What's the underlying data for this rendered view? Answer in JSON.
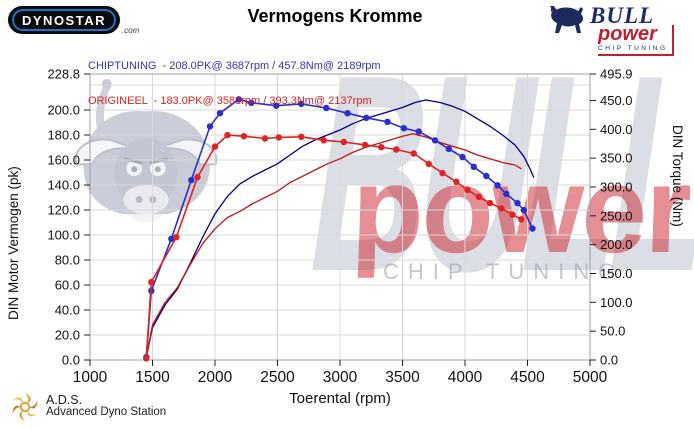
{
  "header": {
    "dynostar_logo_text": "DYNOSTAR",
    "dynostar_logo_suffix": ".com",
    "title": "Vermogens Kromme",
    "bullpower": {
      "brand": "BULL",
      "sub_brand": "power",
      "tagline": "CHIP TUNING"
    }
  },
  "legend": {
    "chiptuning_text": "CHIPTUNING  - 208.0PK@ 3687rpm / 457.8Nm@ 2189rpm",
    "origineel_text": "ORIGINEEL  - 183.0PK@ 3583rpm / 393.3Nm@ 2137rpm",
    "chiptuning_color": "#3333cc",
    "origineel_color": "#dd2222"
  },
  "peaks": {
    "chiptuning": {
      "power_pk": 208.0,
      "power_rpm": 3687,
      "torque_nm": 457.8,
      "torque_rpm": 2189
    },
    "origineel": {
      "power_pk": 183.0,
      "power_rpm": 3583,
      "torque_nm": 393.3,
      "torque_rpm": 2137
    }
  },
  "watermark": {
    "brand": "BULL",
    "sub_brand": "power",
    "tagline": "CHIP TUNING"
  },
  "footer": {
    "abbr": "A.D.S.",
    "name": "Advanced Dyno Station"
  },
  "chart_data": {
    "type": "line",
    "title": "Vermogens Kromme",
    "xlabel": "Toerental (rpm)",
    "ylabel_left": "DIN Motor Vermogen (pk)",
    "ylabel_right": "DIN Torque (Nm)",
    "x_range": [
      1000,
      5000
    ],
    "y_left_range": [
      0,
      228.8
    ],
    "y_right_range": [
      0,
      495.9
    ],
    "grid": true,
    "legend_position": "top-left",
    "x_tick_values": [
      1000,
      1500,
      2000,
      2500,
      3000,
      3500,
      4000,
      4500,
      5000
    ],
    "x_tick_labels": [
      "1000",
      "1500",
      "2000",
      "2500",
      "3000",
      "3500",
      "4000",
      "4500",
      "5000"
    ],
    "y_left_tick_values": [
      0,
      20,
      40,
      60,
      80,
      100,
      120,
      140,
      160,
      180,
      200,
      228.8
    ],
    "y_left_tick_labels": [
      "0.0",
      "20.0",
      "40.0",
      "60.0",
      "80.0",
      "100.0",
      "120.0",
      "140.0",
      "160.0",
      "180.0",
      "200.0",
      "228.8"
    ],
    "y_right_tick_values": [
      0,
      50,
      100,
      150,
      200,
      250,
      300,
      350,
      400,
      450,
      495.9
    ],
    "y_right_tick_labels": [
      "0.0",
      "50.0",
      "100.0",
      "150.0",
      "200.0",
      "250.0",
      "300.0",
      "350.0",
      "400.0",
      "450.0",
      "495.9"
    ],
    "x_gridline_values": [
      1500,
      2000,
      2500,
      3000,
      3500,
      4000,
      4500
    ],
    "y_gridline_left_values": [
      20,
      40,
      60,
      80,
      100,
      120,
      140,
      160,
      180,
      200,
      220
    ],
    "series": [
      {
        "name": "CHIPTUNING vermogen (pk)",
        "axis": "left",
        "color": "#00008b",
        "width": 1.3,
        "markers": false,
        "points": [
          [
            1450,
            2
          ],
          [
            1500,
            26
          ],
          [
            1600,
            44
          ],
          [
            1700,
            57
          ],
          [
            1800,
            77
          ],
          [
            1900,
            98
          ],
          [
            2000,
            117
          ],
          [
            2100,
            131
          ],
          [
            2200,
            141
          ],
          [
            2300,
            147
          ],
          [
            2400,
            152
          ],
          [
            2500,
            157
          ],
          [
            2600,
            164
          ],
          [
            2700,
            171
          ],
          [
            2800,
            176
          ],
          [
            2900,
            180
          ],
          [
            3000,
            184
          ],
          [
            3100,
            189
          ],
          [
            3200,
            193
          ],
          [
            3300,
            196
          ],
          [
            3400,
            199
          ],
          [
            3500,
            202
          ],
          [
            3600,
            206
          ],
          [
            3687,
            208
          ],
          [
            3800,
            206
          ],
          [
            3900,
            203
          ],
          [
            4000,
            199
          ],
          [
            4100,
            193
          ],
          [
            4200,
            187
          ],
          [
            4300,
            180
          ],
          [
            4400,
            172
          ],
          [
            4470,
            163
          ],
          [
            4520,
            153
          ],
          [
            4550,
            146
          ]
        ]
      },
      {
        "name": "ORIGINEEL vermogen (pk)",
        "axis": "left",
        "color": "#c41414",
        "width": 1.3,
        "markers": false,
        "points": [
          [
            1450,
            2
          ],
          [
            1500,
            28
          ],
          [
            1600,
            46
          ],
          [
            1700,
            58
          ],
          [
            1800,
            76
          ],
          [
            1900,
            93
          ],
          [
            2000,
            105
          ],
          [
            2100,
            114
          ],
          [
            2200,
            119
          ],
          [
            2300,
            125
          ],
          [
            2400,
            130
          ],
          [
            2500,
            135
          ],
          [
            2600,
            142
          ],
          [
            2700,
            147
          ],
          [
            2800,
            152
          ],
          [
            2900,
            157
          ],
          [
            3000,
            161
          ],
          [
            3100,
            166
          ],
          [
            3200,
            170
          ],
          [
            3300,
            173
          ],
          [
            3400,
            176
          ],
          [
            3500,
            179
          ],
          [
            3583,
            181
          ],
          [
            3700,
            178
          ],
          [
            3800,
            174
          ],
          [
            3900,
            171
          ],
          [
            4000,
            168
          ],
          [
            4100,
            164
          ],
          [
            4200,
            161
          ],
          [
            4300,
            158
          ],
          [
            4400,
            156
          ],
          [
            4450,
            153
          ]
        ]
      },
      {
        "name": "CHIPTUNING koppel (Nm)",
        "axis": "right",
        "color": "#2a2ecc",
        "width": 1.6,
        "markers": true,
        "points": [
          [
            1450,
            5
          ],
          [
            1490,
            120
          ],
          [
            1650,
            210
          ],
          [
            1810,
            312
          ],
          [
            1960,
            405
          ],
          [
            2040,
            428
          ],
          [
            2190,
            452
          ],
          [
            2290,
            446
          ],
          [
            2490,
            441
          ],
          [
            2690,
            444
          ],
          [
            2890,
            437
          ],
          [
            3060,
            428
          ],
          [
            3210,
            420
          ],
          [
            3380,
            413
          ],
          [
            3510,
            402
          ],
          [
            3630,
            396
          ],
          [
            3760,
            381
          ],
          [
            3870,
            366
          ],
          [
            3980,
            352
          ],
          [
            4070,
            335
          ],
          [
            4170,
            319
          ],
          [
            4260,
            303
          ],
          [
            4330,
            288
          ],
          [
            4420,
            272
          ],
          [
            4470,
            260
          ],
          [
            4540,
            228
          ]
        ]
      },
      {
        "name": "ORIGINEEL koppel (Nm)",
        "axis": "right",
        "color": "#e02222",
        "width": 1.6,
        "markers": true,
        "points": [
          [
            1450,
            3
          ],
          [
            1490,
            135
          ],
          [
            1690,
            213
          ],
          [
            1860,
            317
          ],
          [
            2000,
            370
          ],
          [
            2100,
            390
          ],
          [
            2230,
            388
          ],
          [
            2400,
            384
          ],
          [
            2510,
            386
          ],
          [
            2690,
            387
          ],
          [
            2870,
            381
          ],
          [
            3030,
            378
          ],
          [
            3200,
            373
          ],
          [
            3330,
            369
          ],
          [
            3450,
            365
          ],
          [
            3590,
            358
          ],
          [
            3710,
            340
          ],
          [
            3820,
            324
          ],
          [
            3930,
            309
          ],
          [
            4020,
            295
          ],
          [
            4110,
            283
          ],
          [
            4200,
            272
          ],
          [
            4290,
            263
          ],
          [
            4380,
            252
          ],
          [
            4450,
            244
          ]
        ]
      }
    ]
  }
}
